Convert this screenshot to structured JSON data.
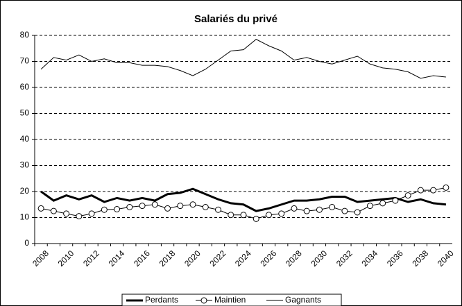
{
  "chart_data": {
    "type": "line",
    "title": "Salariés du privé",
    "categories": [
      "2008",
      null,
      "2010",
      null,
      "2012",
      null,
      "2014",
      null,
      "2016",
      null,
      "2018",
      null,
      "2020",
      null,
      "2022",
      null,
      "2024",
      null,
      "2026",
      null,
      "2028",
      null,
      "2030",
      null,
      "2032",
      null,
      "2034",
      null,
      "2036",
      null,
      "2038",
      null,
      "2040"
    ],
    "series": [
      {
        "name": "Perdants",
        "color": "#000000",
        "values": [
          20,
          16.5,
          18.5,
          17,
          18.5,
          16,
          17.5,
          16.5,
          17.5,
          16.5,
          19,
          19.5,
          21,
          19,
          17,
          15.5,
          15,
          12.5,
          13.5,
          15,
          16.5,
          16.5,
          17,
          18,
          18,
          16,
          16.5,
          17,
          17.5,
          16,
          17,
          15.5,
          15
        ]
      },
      {
        "name": "Maintien",
        "color": "#000000",
        "values": [
          13.5,
          12.5,
          11.5,
          10.5,
          11.5,
          13,
          13.2,
          14,
          14.5,
          15,
          13.5,
          14.5,
          15,
          14,
          13,
          11,
          11,
          9.5,
          11,
          11.5,
          13.5,
          12.5,
          13,
          14,
          12.5,
          12,
          14.5,
          15.5,
          16.5,
          18.5,
          20.5,
          20.5,
          21.5
        ]
      },
      {
        "name": "Gagnants",
        "color": "#000000",
        "values": [
          67,
          71.5,
          70.5,
          72.5,
          70,
          71,
          69.5,
          69.5,
          68.5,
          68.5,
          68,
          66.5,
          64.5,
          67,
          70.5,
          74,
          74.5,
          78.5,
          76,
          74,
          70.5,
          71.5,
          70,
          69,
          70.5,
          72,
          69,
          67.5,
          67,
          66,
          63.5,
          64.5,
          64
        ]
      }
    ],
    "ylim": [
      0,
      80
    ],
    "yticks": [
      0,
      10,
      20,
      30,
      40,
      50,
      60,
      70,
      80
    ],
    "grid": true
  }
}
